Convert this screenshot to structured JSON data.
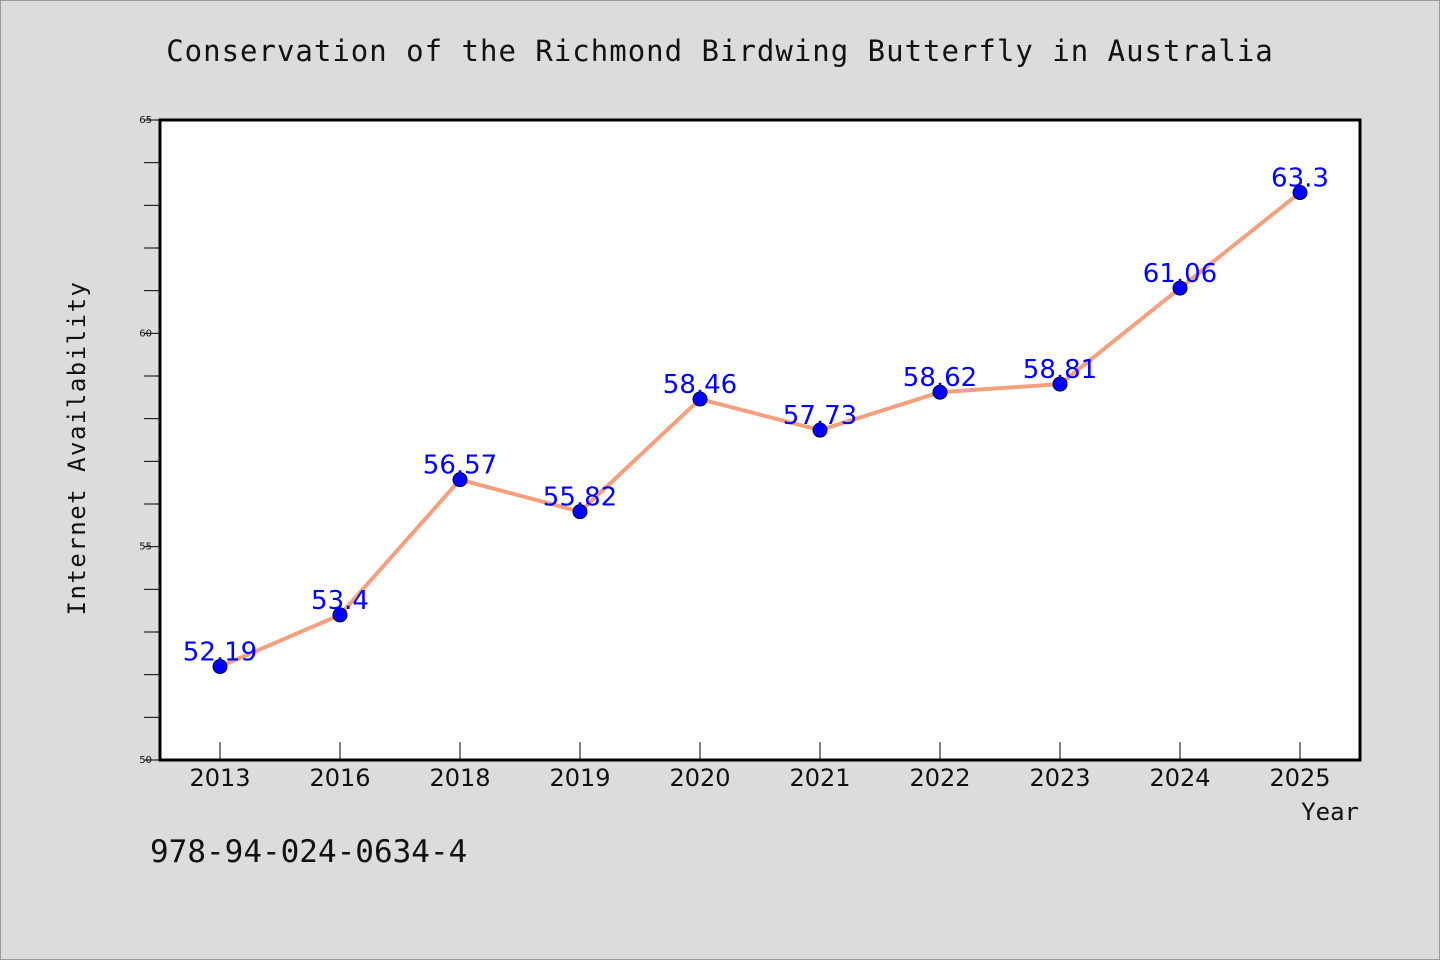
{
  "chart_data": {
    "type": "line",
    "title": "Conservation of the Richmond Birdwing Butterfly in Australia",
    "xlabel": "Year",
    "ylabel": "Internet Availability",
    "categories": [
      "2013",
      "2016",
      "2018",
      "2019",
      "2020",
      "2021",
      "2022",
      "2023",
      "2024",
      "2025"
    ],
    "values": [
      52.19,
      53.4,
      56.57,
      55.82,
      58.46,
      57.73,
      58.62,
      58.81,
      61.06,
      63.3
    ],
    "data_labels": [
      "52.19",
      "53.4",
      "56.57",
      "55.82",
      "58.46",
      "57.73",
      "58.62",
      "58.81",
      "61.06",
      "63.3"
    ],
    "ylim": [
      50,
      65
    ],
    "yticks": [
      "50",
      "55",
      "60",
      "65"
    ],
    "grid": false,
    "colors": {
      "line": "#f4a07e",
      "marker": "#0000ff",
      "label": "#0000ff",
      "background": "#dcdcdc",
      "plot_bg": "#ffffff"
    }
  },
  "footer": {
    "isbn": "978-94-024-0634-4"
  }
}
